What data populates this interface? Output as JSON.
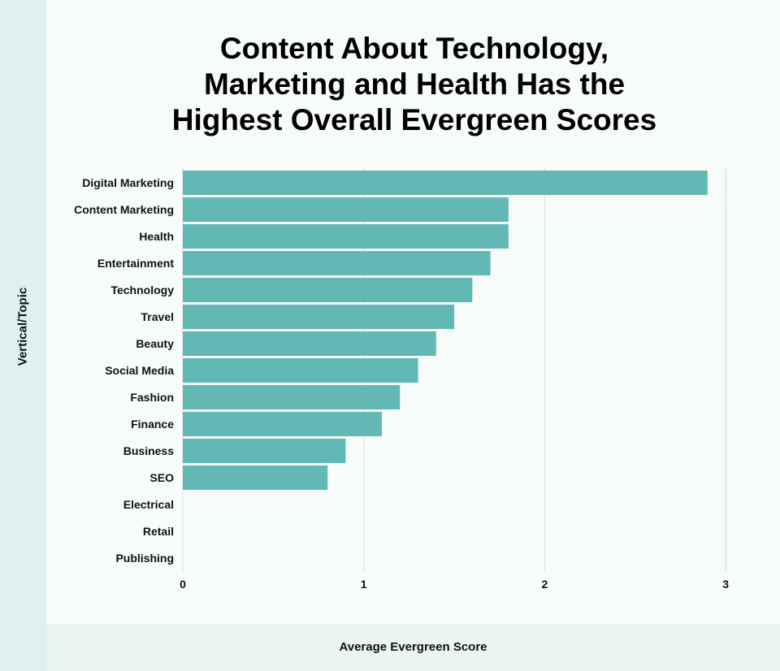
{
  "title_lines": [
    "Content About Technology,",
    "Marketing and Health Has the",
    "Highest Overall Evergreen Scores"
  ],
  "chart_data": {
    "type": "bar",
    "orientation": "horizontal",
    "title": "Content About Technology, Marketing and Health Has the Highest Overall Evergreen Scores",
    "xlabel": "Average Evergreen Score",
    "ylabel": "Vertical/Topic",
    "categories": [
      "Digital Marketing",
      "Content Marketing",
      "Health",
      "Entertainment",
      "Technology",
      "Travel",
      "Beauty",
      "Social Media",
      "Fashion",
      "Finance",
      "Business",
      "SEO",
      "Electrical",
      "Retail",
      "Publishing"
    ],
    "values": [
      2.9,
      1.8,
      1.8,
      1.7,
      1.6,
      1.5,
      1.4,
      1.3,
      1.2,
      1.1,
      0.9,
      0.8,
      0,
      0,
      0
    ],
    "xlim": [
      0,
      3
    ],
    "xticks": [
      "0",
      "1",
      "2",
      "3"
    ],
    "grid": true,
    "bar_color": "#62b8b4"
  }
}
